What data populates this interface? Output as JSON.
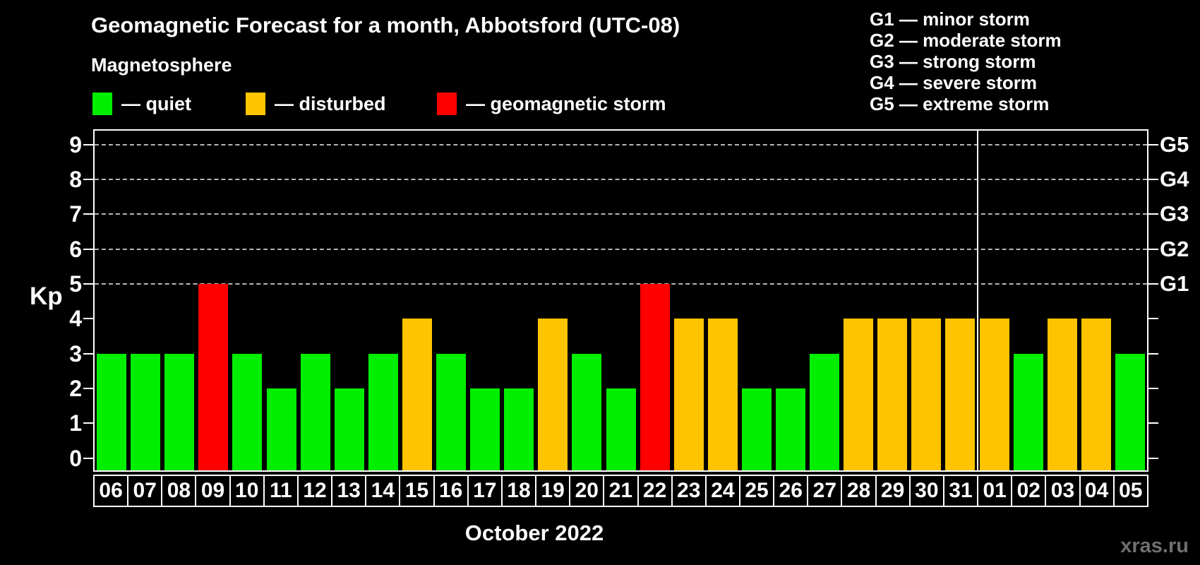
{
  "title": "Geomagnetic Forecast for a month, Abbotsford (UTC-08)",
  "subtitle": "Magnetosphere",
  "legend": {
    "items": [
      {
        "status": "quiet",
        "label": "— quiet",
        "color": "#00ee00"
      },
      {
        "status": "disturbed",
        "label": "— disturbed",
        "color": "#ffc400"
      },
      {
        "status": "storm",
        "label": "— geomagnetic storm",
        "color": "#ff0000"
      }
    ]
  },
  "g_scale_legend": [
    "G1 — minor storm",
    "G2 — moderate storm",
    "G3 — strong storm",
    "G4 — severe storm",
    "G5 — extreme storm"
  ],
  "y_axis_label": "Kp",
  "x_axis_label": "October 2022",
  "watermark": "xras.ru",
  "colors": {
    "background": "#000000",
    "text": "#ffffff",
    "grid": "#b5b5b5",
    "axis": "#ffffff",
    "quiet": "#00ee00",
    "disturbed": "#ffc400",
    "storm": "#ff0000",
    "watermark": "#6f6f6f"
  },
  "chart_data": {
    "type": "bar",
    "title": "Geomagnetic Forecast for a month, Abbotsford (UTC-08)",
    "xlabel": "October 2022",
    "ylabel": "Kp",
    "ylim": [
      0,
      9
    ],
    "grid": "dashed horizontal lines at Kp 5-9 only",
    "legend_position": "top-left",
    "categories": [
      "06",
      "07",
      "08",
      "09",
      "10",
      "11",
      "12",
      "13",
      "14",
      "15",
      "16",
      "17",
      "18",
      "19",
      "20",
      "21",
      "22",
      "23",
      "24",
      "25",
      "26",
      "27",
      "28",
      "29",
      "30",
      "31",
      "01",
      "02",
      "03",
      "04",
      "05"
    ],
    "values": [
      3,
      3,
      3,
      5,
      3,
      2,
      3,
      2,
      3,
      4,
      3,
      2,
      2,
      4,
      3,
      2,
      5,
      4,
      4,
      2,
      2,
      3,
      4,
      4,
      4,
      4,
      4,
      3,
      4,
      4,
      3
    ],
    "statuses": [
      "quiet",
      "quiet",
      "quiet",
      "storm",
      "quiet",
      "quiet",
      "quiet",
      "quiet",
      "quiet",
      "disturbed",
      "quiet",
      "quiet",
      "quiet",
      "disturbed",
      "quiet",
      "quiet",
      "storm",
      "disturbed",
      "disturbed",
      "quiet",
      "quiet",
      "quiet",
      "disturbed",
      "disturbed",
      "disturbed",
      "disturbed",
      "disturbed",
      "quiet",
      "disturbed",
      "disturbed",
      "quiet"
    ],
    "series_colors": {
      "quiet": "#00ee00",
      "disturbed": "#ffc400",
      "storm": "#ff0000"
    },
    "yticks": [
      0,
      1,
      2,
      3,
      4,
      5,
      6,
      7,
      8,
      9
    ],
    "gridlines_at": [
      5,
      6,
      7,
      8,
      9
    ],
    "right_axis_labels": [
      {
        "label": "G1",
        "kp": 5
      },
      {
        "label": "G2",
        "kp": 6
      },
      {
        "label": "G3",
        "kp": 7
      },
      {
        "label": "G4",
        "kp": 8
      },
      {
        "label": "G5",
        "kp": 9
      }
    ],
    "month_divider_after_index": 25
  }
}
